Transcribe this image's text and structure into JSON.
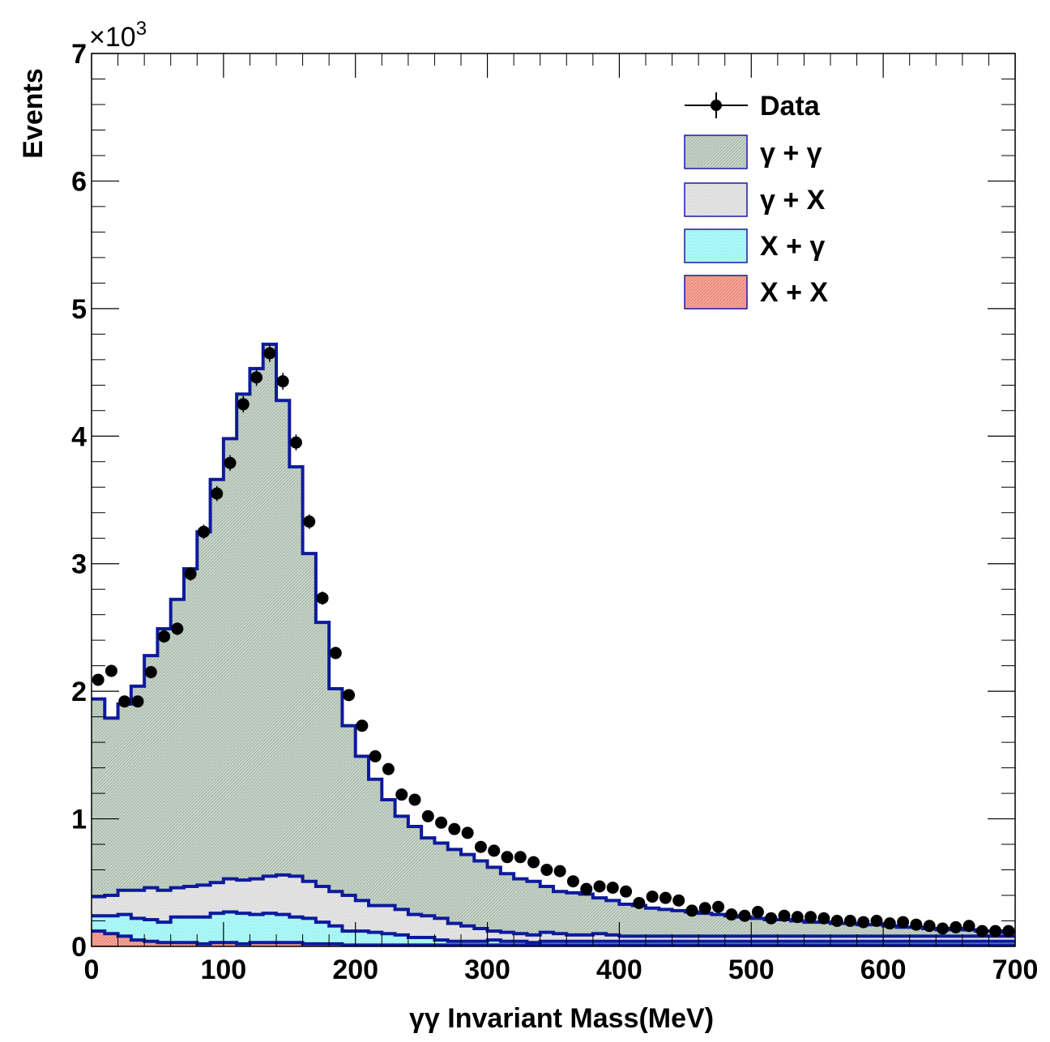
{
  "chart_data": {
    "type": "histogram",
    "xlabel": "γγ Invariant Mass(MeV)",
    "ylabel": "Events",
    "y_multiplier": "×10",
    "y_exponent": "3",
    "xlim": [
      0,
      700
    ],
    "ylim": [
      0,
      7
    ],
    "x_ticks": [
      "0",
      "100",
      "200",
      "300",
      "400",
      "500",
      "600",
      "700"
    ],
    "y_ticks": [
      "0",
      "1",
      "2",
      "3",
      "4",
      "5",
      "6",
      "7"
    ],
    "bin_width": 10,
    "bin_edges_start": 0,
    "legend_position": "top-right",
    "legend": [
      {
        "label": "Data",
        "style": "marker"
      },
      {
        "label": "γ + γ",
        "style": "box",
        "color": "#c6d3c7"
      },
      {
        "label": "γ + X",
        "style": "box",
        "color": "#e6e6e6"
      },
      {
        "label": "X + γ",
        "style": "box",
        "color": "#b3fbfb"
      },
      {
        "label": "X + X",
        "style": "box",
        "color": "#f4a79a"
      }
    ],
    "stack_components": {
      "xx": [
        0.12,
        0.1,
        0.08,
        0.05,
        0.04,
        0.03,
        0.03,
        0.03,
        0.02,
        0.03,
        0.03,
        0.02,
        0.03,
        0.03,
        0.03,
        0.03,
        0.02,
        0.02,
        0.02,
        0.01,
        0.01,
        0.01,
        0.01,
        0.01,
        0.01,
        0.01,
        0.01,
        0.01,
        0.01,
        0.01,
        0.01,
        0.01,
        0.01,
        0.01,
        0.01,
        0.01,
        0.01,
        0.01,
        0.01,
        0.01,
        0.01,
        0.01,
        0.01,
        0.01,
        0.01,
        0.01,
        0.01,
        0.01,
        0.01,
        0.01,
        0.01,
        0.01,
        0.01,
        0.01,
        0.01,
        0.01,
        0.01,
        0.01,
        0.01,
        0.01,
        0.01,
        0.01,
        0.01,
        0.01,
        0.01,
        0.01,
        0.01,
        0.01,
        0.01,
        0.01
      ],
      "xg": [
        0.12,
        0.14,
        0.17,
        0.17,
        0.17,
        0.16,
        0.2,
        0.2,
        0.21,
        0.23,
        0.24,
        0.24,
        0.22,
        0.23,
        0.22,
        0.2,
        0.2,
        0.17,
        0.14,
        0.11,
        0.11,
        0.1,
        0.09,
        0.08,
        0.06,
        0.06,
        0.04,
        0.03,
        0.03,
        0.03,
        0.04,
        0.03,
        0.03,
        0.02,
        0.03,
        0.03,
        0.03,
        0.03,
        0.03,
        0.03,
        0.03,
        0.03,
        0.03,
        0.03,
        0.03,
        0.03,
        0.03,
        0.03,
        0.03,
        0.03,
        0.03,
        0.03,
        0.03,
        0.03,
        0.03,
        0.03,
        0.03,
        0.03,
        0.03,
        0.03,
        0.03,
        0.03,
        0.03,
        0.03,
        0.03,
        0.03,
        0.03,
        0.03,
        0.03,
        0.03
      ],
      "gx": [
        0.15,
        0.16,
        0.19,
        0.22,
        0.25,
        0.25,
        0.23,
        0.24,
        0.25,
        0.24,
        0.26,
        0.26,
        0.28,
        0.29,
        0.31,
        0.32,
        0.29,
        0.28,
        0.27,
        0.28,
        0.24,
        0.21,
        0.22,
        0.2,
        0.18,
        0.17,
        0.17,
        0.14,
        0.12,
        0.1,
        0.07,
        0.07,
        0.06,
        0.06,
        0.07,
        0.06,
        0.05,
        0.05,
        0.06,
        0.05,
        0.04,
        0.04,
        0.04,
        0.04,
        0.04,
        0.04,
        0.04,
        0.04,
        0.04,
        0.04,
        0.04,
        0.04,
        0.04,
        0.04,
        0.04,
        0.04,
        0.04,
        0.04,
        0.04,
        0.04,
        0.04,
        0.04,
        0.04,
        0.04,
        0.04,
        0.04,
        0.04,
        0.04,
        0.04,
        0.04
      ],
      "total": [
        1.94,
        1.79,
        1.9,
        2.04,
        2.28,
        2.49,
        2.72,
        2.96,
        3.25,
        3.66,
        3.98,
        4.33,
        4.53,
        4.72,
        4.28,
        3.76,
        3.08,
        2.54,
        2.02,
        1.73,
        1.49,
        1.31,
        1.15,
        1.02,
        0.94,
        0.85,
        0.81,
        0.76,
        0.72,
        0.67,
        0.62,
        0.57,
        0.53,
        0.51,
        0.47,
        0.43,
        0.42,
        0.41,
        0.38,
        0.36,
        0.33,
        0.32,
        0.3,
        0.29,
        0.28,
        0.27,
        0.26,
        0.25,
        0.24,
        0.23,
        0.22,
        0.21,
        0.21,
        0.2,
        0.19,
        0.19,
        0.18,
        0.18,
        0.17,
        0.17,
        0.16,
        0.15,
        0.15,
        0.14,
        0.13,
        0.14,
        0.13,
        0.12,
        0.12,
        0.11
      ]
    },
    "data_points": {
      "x": [
        5,
        15,
        25,
        35,
        45,
        55,
        65,
        75,
        85,
        95,
        105,
        115,
        125,
        135,
        145,
        155,
        165,
        175,
        185,
        195,
        205,
        215,
        225,
        235,
        245,
        255,
        265,
        275,
        285,
        295,
        305,
        315,
        325,
        335,
        345,
        355,
        365,
        375,
        385,
        395,
        405,
        415,
        425,
        435,
        445,
        455,
        465,
        475,
        485,
        495,
        505,
        515,
        525,
        535,
        545,
        555,
        565,
        575,
        585,
        595,
        605,
        615,
        625,
        635,
        645,
        655,
        665,
        675,
        685,
        695
      ],
      "y": [
        2.09,
        2.16,
        1.92,
        1.92,
        2.15,
        2.43,
        2.49,
        2.92,
        3.25,
        3.55,
        3.79,
        4.25,
        4.46,
        4.65,
        4.43,
        3.95,
        3.33,
        2.73,
        2.3,
        1.97,
        1.73,
        1.49,
        1.39,
        1.19,
        1.15,
        1.02,
        0.97,
        0.92,
        0.89,
        0.78,
        0.75,
        0.7,
        0.7,
        0.66,
        0.6,
        0.59,
        0.51,
        0.45,
        0.47,
        0.46,
        0.43,
        0.34,
        0.39,
        0.38,
        0.36,
        0.28,
        0.3,
        0.31,
        0.25,
        0.24,
        0.27,
        0.22,
        0.24,
        0.23,
        0.23,
        0.22,
        0.2,
        0.2,
        0.19,
        0.2,
        0.18,
        0.19,
        0.17,
        0.16,
        0.14,
        0.15,
        0.16,
        0.12,
        0.12,
        0.12
      ]
    }
  }
}
